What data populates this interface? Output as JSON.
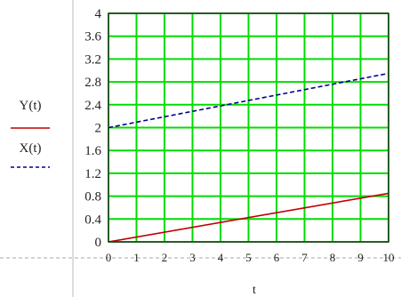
{
  "chart_data": {
    "type": "line",
    "x": [
      0,
      10
    ],
    "series": [
      {
        "name": "Y(t)",
        "x": [
          0,
          10
        ],
        "values": [
          0,
          0.85
        ],
        "color": "#c00000",
        "line_style": "solid"
      },
      {
        "name": "X(t)",
        "x": [
          0,
          10
        ],
        "values": [
          2,
          2.95
        ],
        "color": "#00008b",
        "line_style": "dashed"
      }
    ],
    "xlabel": "t",
    "ylabel": "",
    "xlim": [
      0,
      10
    ],
    "ylim": [
      0,
      4
    ],
    "x_ticks": [
      {
        "value": 0,
        "label": "0"
      },
      {
        "value": 1,
        "label": "1"
      },
      {
        "value": 2,
        "label": "2"
      },
      {
        "value": 3,
        "label": "3"
      },
      {
        "value": 4,
        "label": "4"
      },
      {
        "value": 5,
        "label": "5"
      },
      {
        "value": 6,
        "label": "6"
      },
      {
        "value": 7,
        "label": "7"
      },
      {
        "value": 8,
        "label": "8"
      },
      {
        "value": 9,
        "label": "9"
      },
      {
        "value": 10,
        "label": "10"
      }
    ],
    "y_ticks": [
      {
        "value": 0,
        "label": "0"
      },
      {
        "value": 0.4,
        "label": "0.4"
      },
      {
        "value": 0.8,
        "label": "0.8"
      },
      {
        "value": 1.2,
        "label": "1.2"
      },
      {
        "value": 1.6,
        "label": "1.6"
      },
      {
        "value": 2,
        "label": "2"
      },
      {
        "value": 2.4,
        "label": "2.4"
      },
      {
        "value": 2.8,
        "label": "2.8"
      },
      {
        "value": 3.2,
        "label": "3.2"
      },
      {
        "value": 3.6,
        "label": "3.6"
      },
      {
        "value": 4,
        "label": "4"
      }
    ],
    "grid": true,
    "grid_color": "#00dd00",
    "legend": "left",
    "legend_entries": [
      "Y(t)",
      "X(t)"
    ]
  }
}
